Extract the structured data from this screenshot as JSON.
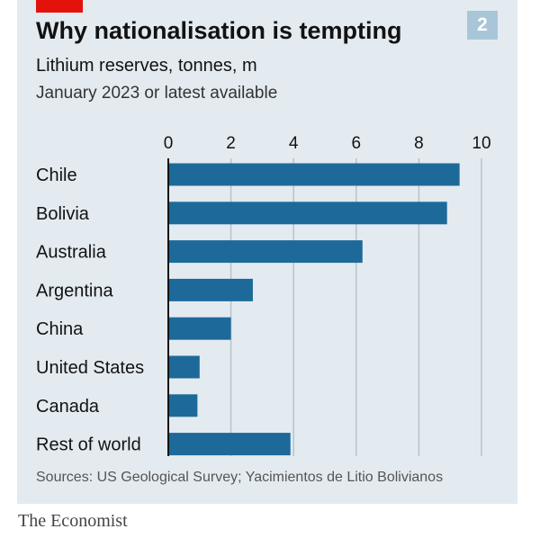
{
  "header": {
    "title": "Why nationalisation is tempting",
    "chart_number": "2"
  },
  "footer": {
    "source": "Sources: US Geological Survey; Yacimientos de Litio Bolivianos",
    "brand": "The Economist"
  },
  "colors": {
    "bar": "#1d6a9a",
    "panel": "#e3ebf0",
    "accent": "#e3120b",
    "grid": "#b7c3cb"
  },
  "chart_data": {
    "type": "bar",
    "orientation": "horizontal",
    "title": "Why nationalisation is tempting",
    "subtitle": "Lithium reserves, tonnes, m",
    "subtitle2": "January 2023 or latest available",
    "categories": [
      "Chile",
      "Bolivia",
      "Australia",
      "Argentina",
      "China",
      "United States",
      "Canada",
      "Rest of world"
    ],
    "values": [
      9.3,
      8.9,
      6.2,
      2.7,
      2.0,
      1.0,
      0.93,
      3.9
    ],
    "xlim": [
      0,
      10
    ],
    "xticks": [
      0,
      2,
      4,
      6,
      8,
      10
    ],
    "xlabel": "",
    "ylabel": "",
    "grid": true
  }
}
